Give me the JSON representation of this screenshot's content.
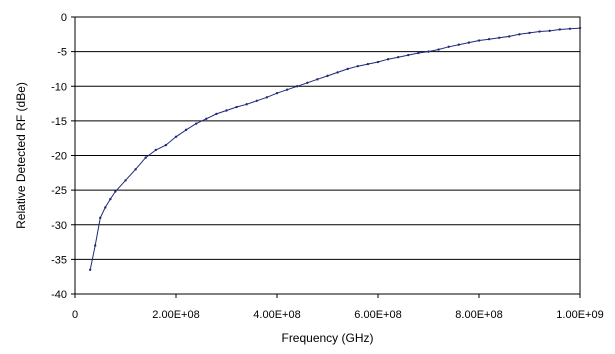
{
  "chart_data": {
    "type": "line",
    "title": "",
    "xlabel": "Frequency (GHz)",
    "ylabel": "Relative Detected RF (dBe)",
    "xlim": [
      0,
      1000000000
    ],
    "ylim": [
      -40,
      0
    ],
    "xticks": [
      0,
      200000000,
      400000000,
      600000000,
      800000000,
      1000000000
    ],
    "xtick_labels": [
      "0",
      "2.00E+08",
      "4.00E+08",
      "6.00E+08",
      "8.00E+08",
      "1.00E+09"
    ],
    "yticks": [
      0,
      -5,
      -10,
      -15,
      -20,
      -25,
      -30,
      -35,
      -40
    ],
    "ytick_labels": [
      "0",
      "-5",
      "-10",
      "-15",
      "-20",
      "-25",
      "-30",
      "-35",
      "-40"
    ],
    "grid": "horizontal",
    "legend": "none",
    "series": [
      {
        "color": "#1f2a7a",
        "marker": "dot",
        "x": [
          30000000,
          40000000,
          50000000,
          60000000,
          70000000,
          80000000,
          100000000,
          120000000,
          140000000,
          160000000,
          180000000,
          200000000,
          220000000,
          240000000,
          260000000,
          280000000,
          300000000,
          320000000,
          340000000,
          360000000,
          380000000,
          400000000,
          420000000,
          440000000,
          460000000,
          480000000,
          500000000,
          520000000,
          540000000,
          560000000,
          580000000,
          600000000,
          620000000,
          640000000,
          660000000,
          680000000,
          700000000,
          720000000,
          740000000,
          760000000,
          780000000,
          800000000,
          820000000,
          840000000,
          860000000,
          880000000,
          900000000,
          920000000,
          940000000,
          960000000,
          980000000,
          1000000000
        ],
        "y": [
          -36.5,
          -33.0,
          -29.0,
          -27.5,
          -26.3,
          -25.2,
          -23.6,
          -22.0,
          -20.3,
          -19.2,
          -18.5,
          -17.3,
          -16.3,
          -15.4,
          -14.7,
          -14.0,
          -13.5,
          -13.0,
          -12.6,
          -12.1,
          -11.6,
          -11.0,
          -10.5,
          -10.0,
          -9.5,
          -9.0,
          -8.5,
          -8.0,
          -7.5,
          -7.1,
          -6.8,
          -6.5,
          -6.1,
          -5.8,
          -5.5,
          -5.2,
          -5.0,
          -4.7,
          -4.3,
          -4.0,
          -3.7,
          -3.4,
          -3.2,
          -3.0,
          -2.8,
          -2.5,
          -2.3,
          -2.1,
          -2.0,
          -1.8,
          -1.7,
          -1.6
        ]
      }
    ]
  }
}
